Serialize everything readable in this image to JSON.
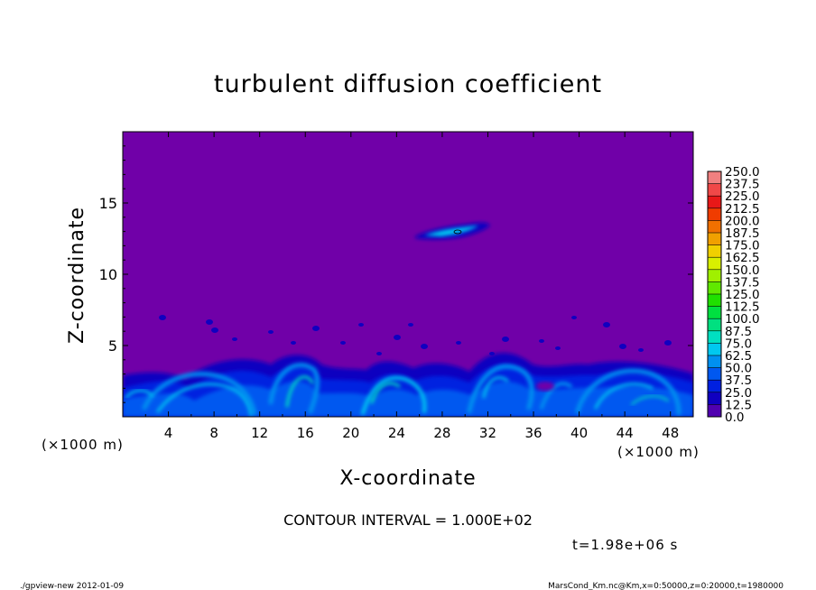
{
  "chart_data": {
    "type": "heatmap",
    "title": "turbulent diffusion coefficient",
    "xlabel": "X-coordinate",
    "ylabel": "Z-coordinate",
    "x_unit_left": "(×1000 m)",
    "x_unit_right": "(×1000 m)",
    "xlim": [
      0,
      50
    ],
    "ylim": [
      0,
      20
    ],
    "xticks": [
      4,
      8,
      12,
      16,
      20,
      24,
      28,
      32,
      36,
      40,
      44,
      48
    ],
    "yticks": [
      5,
      10,
      15
    ],
    "background_color": "#7000a8",
    "colorbar": {
      "levels": [
        "250.0",
        "237.5",
        "225.0",
        "212.5",
        "200.0",
        "187.5",
        "175.0",
        "162.5",
        "150.0",
        "137.5",
        "125.0",
        "112.5",
        "100.0",
        "87.5",
        "75.0",
        "62.5",
        "50.0",
        "37.5",
        "25.0",
        "12.5",
        "0.0"
      ],
      "colors": [
        "#f08080",
        "#f04848",
        "#e81818",
        "#f03c00",
        "#f07000",
        "#f0a000",
        "#f0d000",
        "#d8f000",
        "#a0f000",
        "#60e800",
        "#20e000",
        "#00e040",
        "#00e080",
        "#00e0c0",
        "#00c8f0",
        "#0090f0",
        "#0058f0",
        "#0020e0",
        "#1000c0",
        "#5000b0"
      ]
    },
    "contour_interval": "CONTOUR INTERVAL = 1.000E+02",
    "time_label": "t=1.98e+06 s"
  },
  "footer": {
    "left": "./gpview-new   2012-01-09",
    "right": "MarsCond_Km.nc@Km,x=0:50000,z=0:20000,t=1980000"
  }
}
